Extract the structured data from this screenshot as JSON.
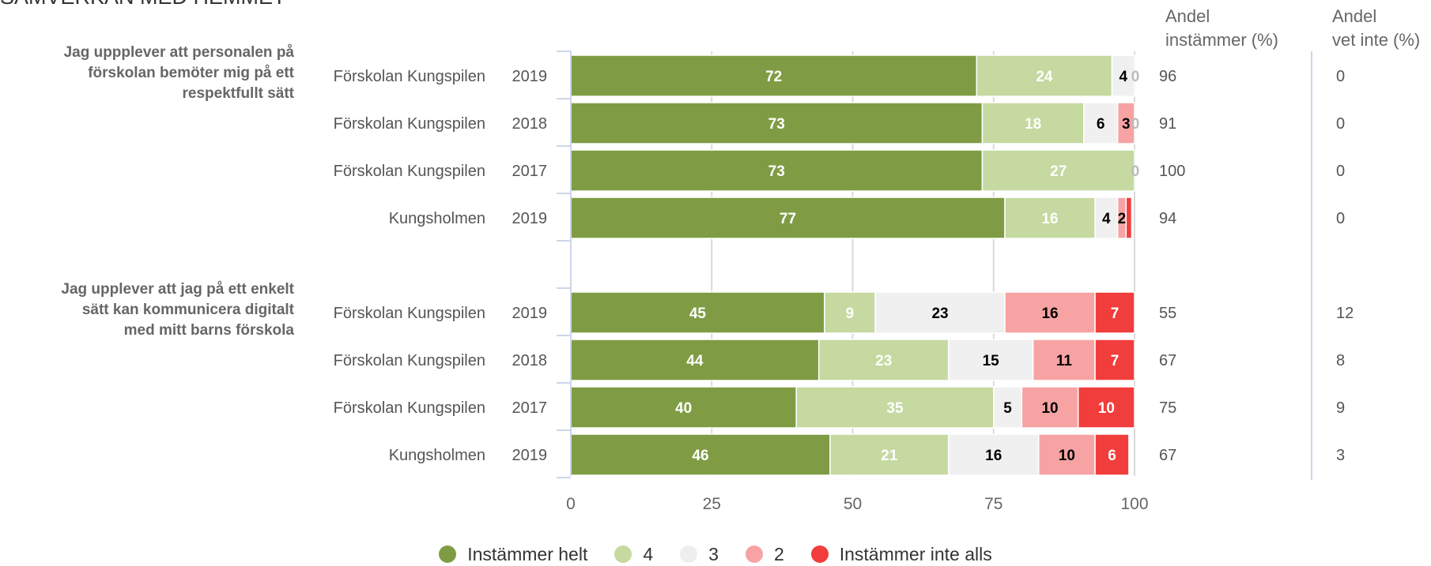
{
  "title": "SAMVERKAN MED HEMMET",
  "headers": {
    "share_agree": [
      "Andel",
      "instämmer (%)"
    ],
    "share_dont_know": [
      "Andel",
      "vet inte (%)"
    ]
  },
  "colors": {
    "Instämmer helt": "#7f9c44",
    "4": "#c5d9a0",
    "3": "#f0f0f0",
    "2": "#f7a3a3",
    "Instämmer inte alls": "#f23d3d"
  },
  "chart_data": {
    "type": "bar",
    "orientation": "horizontal",
    "stacked": true,
    "xlim": [
      0,
      100
    ],
    "xticks": [
      "0",
      "25",
      "50",
      "75",
      "100"
    ],
    "legend_position": "bottom",
    "series": [
      {
        "name": "Instämmer helt"
      },
      {
        "name": "4"
      },
      {
        "name": "3"
      },
      {
        "name": "2"
      },
      {
        "name": "Instämmer inte alls"
      }
    ],
    "groups": [
      {
        "question": [
          "Jag uppplever att personalen på",
          "förskolan bemöter mig på ett",
          "respektfullt sätt"
        ],
        "rows": [
          {
            "unit": "Förskolan Kungspilen",
            "year": "2019",
            "values": [
              72,
              24,
              4,
              0,
              0
            ],
            "labels": [
              "72",
              "24",
              "4",
              "0",
              ""
            ],
            "andel_instammer": "96",
            "andel_vet_inte": "0"
          },
          {
            "unit": "Förskolan Kungspilen",
            "year": "2018",
            "values": [
              73,
              18,
              6,
              3,
              0
            ],
            "labels": [
              "73",
              "18",
              "6",
              "3",
              "0"
            ],
            "andel_instammer": "91",
            "andel_vet_inte": "0"
          },
          {
            "unit": "Förskolan Kungspilen",
            "year": "2017",
            "values": [
              73,
              27,
              0,
              0,
              0
            ],
            "labels": [
              "73",
              "27",
              "0",
              "",
              ""
            ],
            "andel_instammer": "100",
            "andel_vet_inte": "0"
          },
          {
            "unit": "Kungsholmen",
            "year": "2019",
            "values": [
              77,
              16,
              4,
              1.5,
              1
            ],
            "labels": [
              "77",
              "16",
              "4",
              "2",
              ""
            ],
            "andel_instammer": "94",
            "andel_vet_inte": "0"
          }
        ]
      },
      {
        "question": [
          "Jag upplever att jag på ett enkelt",
          "sätt kan kommunicera digitalt",
          "med mitt barns förskola"
        ],
        "rows": [
          {
            "unit": "Förskolan Kungspilen",
            "year": "2019",
            "values": [
              45,
              9,
              23,
              16,
              7
            ],
            "labels": [
              "45",
              "9",
              "23",
              "16",
              "7"
            ],
            "andel_instammer": "55",
            "andel_vet_inte": "12"
          },
          {
            "unit": "Förskolan Kungspilen",
            "year": "2018",
            "values": [
              44,
              23,
              15,
              11,
              7
            ],
            "labels": [
              "44",
              "23",
              "15",
              "11",
              "7"
            ],
            "andel_instammer": "67",
            "andel_vet_inte": "8"
          },
          {
            "unit": "Förskolan Kungspilen",
            "year": "2017",
            "values": [
              40,
              35,
              5,
              10,
              10
            ],
            "labels": [
              "40",
              "35",
              "5",
              "10",
              "10"
            ],
            "andel_instammer": "75",
            "andel_vet_inte": "9"
          },
          {
            "unit": "Kungsholmen",
            "year": "2019",
            "values": [
              46,
              21,
              16,
              10,
              6
            ],
            "labels": [
              "46",
              "21",
              "16",
              "10",
              "6"
            ],
            "andel_instammer": "67",
            "andel_vet_inte": "3"
          }
        ]
      }
    ]
  }
}
